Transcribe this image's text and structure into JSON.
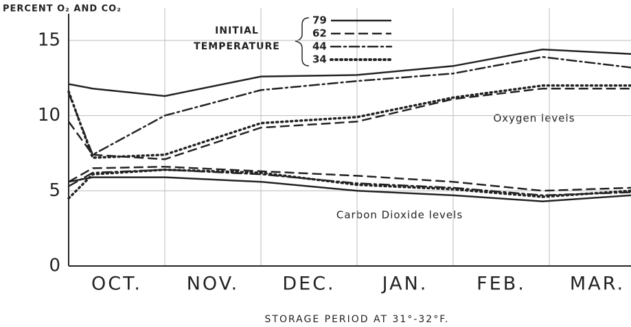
{
  "chart_data": {
    "type": "line",
    "y_axis_title": "PERCENT O₂ AND CO₂",
    "x_axis_title": "STORAGE PERIOD AT 31°-32°F.",
    "legend_title": [
      "INITIAL",
      "TEMPERATURE"
    ],
    "annotations": [
      "Oxygen levels",
      "Carbon Dioxide levels"
    ],
    "categories": [
      "OCT.",
      "NOV.",
      "DEC.",
      "JAN.",
      "FEB.",
      "MAR."
    ],
    "x": [
      0,
      0.25,
      1,
      2,
      3,
      4,
      4.93,
      5.85
    ],
    "xlim": [
      0,
      5.85
    ],
    "xticks": [
      1,
      2,
      3,
      4,
      5
    ],
    "ylim": [
      0,
      15.5
    ],
    "yticks": [
      0,
      5,
      10,
      15
    ],
    "grid": true,
    "color": "#222222",
    "series": [
      {
        "name": "79",
        "dash": "solid",
        "oxygen": [
          12.1,
          11.8,
          11.3,
          12.6,
          12.7,
          13.3,
          14.4,
          14.1
        ],
        "co2": [
          5.6,
          5.9,
          5.9,
          5.6,
          5.0,
          4.7,
          4.3,
          4.7
        ]
      },
      {
        "name": "62",
        "dash": "dashed",
        "oxygen": [
          9.6,
          7.4,
          7.1,
          9.2,
          9.6,
          11.1,
          11.8,
          11.8
        ],
        "co2": [
          5.6,
          6.5,
          6.6,
          6.3,
          6.0,
          5.6,
          5.0,
          5.2
        ]
      },
      {
        "name": "44",
        "dash": "dashdot",
        "oxygen": [
          11.5,
          7.4,
          10.0,
          11.7,
          12.3,
          12.8,
          13.9,
          13.2
        ],
        "co2": [
          5.3,
          6.2,
          6.4,
          6.1,
          5.5,
          5.2,
          4.7,
          4.9
        ]
      },
      {
        "name": "34",
        "dash": "dotted",
        "oxygen": [
          11.6,
          7.2,
          7.4,
          9.5,
          9.9,
          11.2,
          12.0,
          12.0
        ],
        "co2": [
          4.5,
          6.1,
          6.4,
          6.2,
          5.4,
          5.1,
          4.6,
          5.0
        ]
      }
    ]
  }
}
